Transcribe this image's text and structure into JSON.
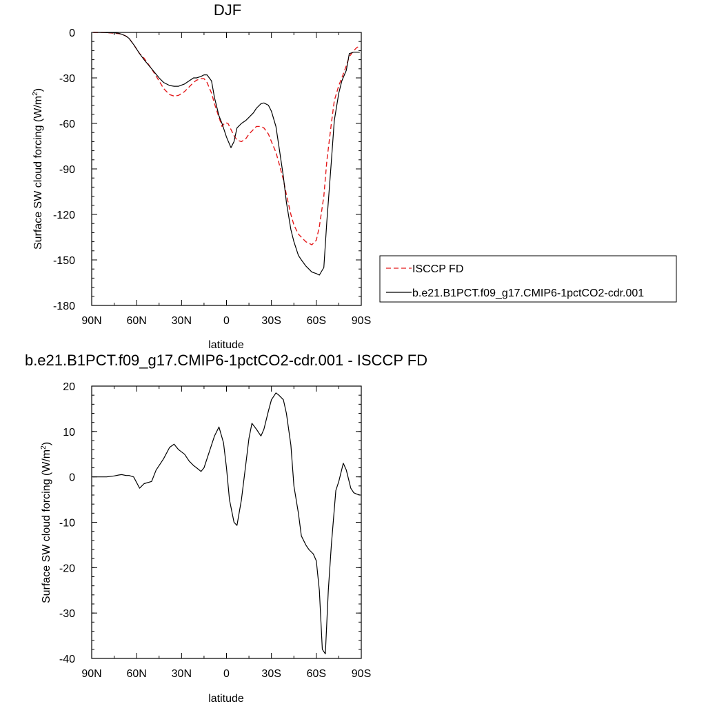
{
  "chart_data": [
    {
      "type": "line",
      "title": "DJF",
      "xlabel": "latitude",
      "ylabel": "Surface SW cloud forcing (W/m",
      "ylabel_sup": "2",
      "ylabel_end": ")",
      "xlim": [
        90,
        -90
      ],
      "ylim": [
        -180,
        0
      ],
      "xticks": [
        90,
        60,
        30,
        0,
        -30,
        -60,
        -90
      ],
      "xtick_labels": [
        "90N",
        "60N",
        "30N",
        "0",
        "30S",
        "60S",
        "90S"
      ],
      "yticks": [
        0,
        -30,
        -60,
        -90,
        -120,
        -150,
        -180
      ],
      "ytick_labels": [
        "0",
        "-30",
        "-60",
        "-90",
        "-120",
        "-150",
        "-180"
      ],
      "legend": "right",
      "series": [
        {
          "name": "ISCCP FD",
          "color": "#e41a1c",
          "dash": "dashed",
          "x": [
            89,
            85,
            80,
            75,
            72,
            70,
            67,
            65,
            62,
            58,
            55,
            50,
            45,
            42,
            38,
            35,
            32,
            28,
            25,
            22,
            20,
            17,
            15,
            13,
            10,
            8,
            5,
            3,
            1,
            -1,
            -3,
            -5,
            -7,
            -10,
            -13,
            -15,
            -18,
            -20,
            -23,
            -25,
            -28,
            -30,
            -33,
            -35,
            -38,
            -40,
            -43,
            -45,
            -48,
            -50,
            -53,
            -55,
            -57,
            -60,
            -62,
            -65,
            -67,
            -70,
            -72,
            -75,
            -77,
            -80,
            -82,
            -85,
            -87,
            -89
          ],
          "y": [
            0,
            0,
            -0.2,
            -0.5,
            -0.8,
            -1.2,
            -2.5,
            -4,
            -8,
            -14,
            -17,
            -24,
            -32,
            -37,
            -41,
            -42,
            -41.5,
            -39,
            -36,
            -33,
            -31.5,
            -30.5,
            -30.5,
            -33,
            -40,
            -47,
            -56,
            -62,
            -59.5,
            -60,
            -64,
            -68,
            -71,
            -72,
            -70,
            -67,
            -64,
            -62,
            -62,
            -63,
            -67,
            -72,
            -79,
            -86,
            -97,
            -107,
            -120,
            -127,
            -133,
            -135,
            -138,
            -139,
            -140,
            -137,
            -128,
            -108,
            -85,
            -60,
            -45,
            -35,
            -30,
            -22,
            -16,
            -12,
            -10,
            -9
          ]
        },
        {
          "name": "b.e21.B1PCT.f09_g17.CMIP6-1pctCO2-cdr.001",
          "color": "#000000",
          "dash": "solid",
          "x": [
            89,
            85,
            80,
            75,
            72,
            70,
            67,
            65,
            62,
            58,
            55,
            50,
            45,
            42,
            38,
            35,
            32,
            28,
            25,
            22,
            20,
            17,
            15,
            13,
            10,
            8,
            5,
            3,
            0,
            -3,
            -5,
            -7,
            -10,
            -13,
            -15,
            -18,
            -20,
            -23,
            -25,
            -28,
            -30,
            -33,
            -35,
            -38,
            -40,
            -43,
            -45,
            -48,
            -50,
            -53,
            -55,
            -57,
            -60,
            -62,
            -65,
            -67,
            -70,
            -72,
            -75,
            -77,
            -80,
            -82,
            -85,
            -87,
            -89
          ],
          "y": [
            0,
            0,
            -0.2,
            -0.3,
            -0.6,
            -1.2,
            -2.5,
            -4,
            -8,
            -14,
            -18,
            -24,
            -30,
            -33,
            -35,
            -35.5,
            -35.5,
            -34,
            -32,
            -30,
            -30,
            -29,
            -28,
            -28,
            -32,
            -43,
            -55,
            -60,
            -69,
            -76,
            -72,
            -63,
            -60,
            -58,
            -56,
            -53,
            -50,
            -47,
            -46.5,
            -48,
            -52,
            -62,
            -75,
            -95,
            -112,
            -130,
            -138,
            -147,
            -150,
            -154,
            -156,
            -158,
            -159,
            -160,
            -155,
            -125,
            -85,
            -58,
            -40,
            -32,
            -25,
            -14,
            -13,
            -13,
            -13
          ]
        }
      ]
    },
    {
      "type": "line",
      "title": "b.e21.B1PCT.f09_g17.CMIP6-1pctCO2-cdr.001 - ISCCP FD",
      "xlabel": "latitude",
      "ylabel": "Surface SW cloud forcing (W/m",
      "ylabel_sup": "2",
      "ylabel_end": ")",
      "xlim": [
        90,
        -90
      ],
      "ylim": [
        -40,
        20
      ],
      "xticks": [
        90,
        60,
        30,
        0,
        -30,
        -60,
        -90
      ],
      "xtick_labels": [
        "90N",
        "60N",
        "30N",
        "0",
        "30S",
        "60S",
        "90S"
      ],
      "yticks": [
        20,
        10,
        0,
        -10,
        -20,
        -30,
        -40
      ],
      "ytick_labels": [
        "20",
        "10",
        "0",
        "-10",
        "-20",
        "-30",
        "-40"
      ],
      "series": [
        {
          "color": "#000000",
          "dash": "solid",
          "x": [
            89,
            85,
            80,
            75,
            72,
            70,
            67,
            65,
            62,
            58,
            55,
            50,
            47,
            45,
            42,
            38,
            35,
            32,
            28,
            25,
            22,
            20,
            17,
            15,
            12,
            8,
            5,
            2,
            0,
            -2,
            -5,
            -7,
            -10,
            -13,
            -15,
            -17,
            -20,
            -23,
            -25,
            -28,
            -30,
            -33,
            -35,
            -38,
            -40,
            -43,
            -45,
            -48,
            -50,
            -53,
            -55,
            -58,
            -60,
            -62,
            -64,
            -66,
            -68,
            -70,
            -73,
            -75,
            -78,
            -80,
            -83,
            -85,
            -87,
            -89
          ],
          "y": [
            0,
            0,
            0,
            0.2,
            0.4,
            0.5,
            0.3,
            0.3,
            0,
            -2.5,
            -1.5,
            -1,
            1.5,
            2.5,
            4,
            6.5,
            7.2,
            6,
            5,
            3.5,
            2.5,
            2,
            1.2,
            2,
            5,
            9,
            11,
            7.5,
            2,
            -5,
            -10,
            -10.7,
            -5,
            3,
            8.5,
            11.8,
            10.5,
            9,
            10.5,
            14.5,
            17,
            18.5,
            18,
            17,
            14,
            7,
            -2,
            -8,
            -13,
            -15,
            -16,
            -17,
            -18.5,
            -25,
            -38,
            -39,
            -25,
            -15,
            -3,
            -1,
            3,
            1.5,
            -2.5,
            -3.5,
            -3.8,
            -4
          ]
        }
      ]
    }
  ]
}
